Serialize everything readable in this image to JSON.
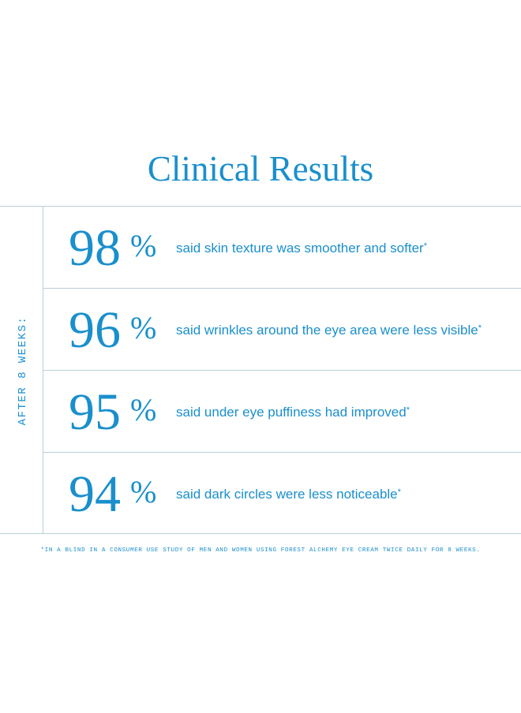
{
  "title": "Clinical Results",
  "side_label": "AFTER 8 WEEKS:",
  "results": [
    {
      "value": "98",
      "unit": "%",
      "text": "said skin texture was smoother and softer",
      "mark": "*"
    },
    {
      "value": "96",
      "unit": "%",
      "text": "said wrinkles around the eye area were less visible",
      "mark": "*"
    },
    {
      "value": "95",
      "unit": "%",
      "text": "said under eye puffiness had improved",
      "mark": "*"
    },
    {
      "value": "94",
      "unit": "%",
      "text": "said dark circles were less noticeable",
      "mark": "*"
    }
  ],
  "footnote": "*IN A BLIND IN A CONSUMER USE STUDY OF MEN AND WOMEN USING FOREST ALCHEMY EYE CREAM TWICE DAILY FOR 8 WEEKS.",
  "colors": {
    "accent": "#1a8fcc",
    "divider": "#b9cfd9",
    "background": "#ffffff"
  }
}
